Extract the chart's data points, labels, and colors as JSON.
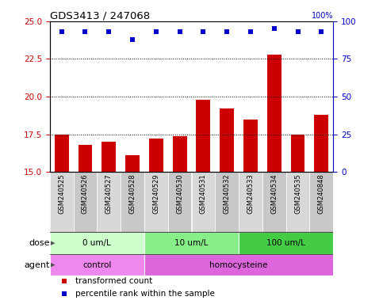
{
  "title": "GDS3413 / 247068",
  "samples": [
    "GSM240525",
    "GSM240526",
    "GSM240527",
    "GSM240528",
    "GSM240529",
    "GSM240530",
    "GSM240531",
    "GSM240532",
    "GSM240533",
    "GSM240534",
    "GSM240535",
    "GSM240848"
  ],
  "transformed_count": [
    17.5,
    16.8,
    17.0,
    16.1,
    17.2,
    17.4,
    19.8,
    19.2,
    18.5,
    22.8,
    17.5,
    18.8
  ],
  "percentile_rank_pct": [
    93,
    93,
    93,
    88,
    93,
    93,
    93,
    93,
    93,
    95,
    93,
    93
  ],
  "bar_color": "#cc0000",
  "dot_color": "#0000cc",
  "ylim_left": [
    15,
    25
  ],
  "ylim_right": [
    0,
    100
  ],
  "yticks_left": [
    15,
    17.5,
    20,
    22.5,
    25
  ],
  "yticks_right": [
    0,
    25,
    50,
    75,
    100
  ],
  "dotted_lines": [
    17.5,
    20,
    22.5
  ],
  "dose_groups": [
    {
      "label": "0 um/L",
      "start": 0,
      "end": 4,
      "color": "#ccffcc"
    },
    {
      "label": "10 um/L",
      "start": 4,
      "end": 8,
      "color": "#88ee88"
    },
    {
      "label": "100 um/L",
      "start": 8,
      "end": 12,
      "color": "#44cc44"
    }
  ],
  "agent_groups": [
    {
      "label": "control",
      "start": 0,
      "end": 4,
      "color": "#ee88ee"
    },
    {
      "label": "homocysteine",
      "start": 4,
      "end": 12,
      "color": "#dd66dd"
    }
  ],
  "legend_items": [
    {
      "label": "transformed count",
      "color": "#cc0000"
    },
    {
      "label": "percentile rank within the sample",
      "color": "#0000cc"
    }
  ],
  "dose_label": "dose",
  "agent_label": "agent",
  "bar_width": 0.6,
  "sample_bg_colors": [
    "#d8d8d8",
    "#c8c8c8"
  ],
  "plot_bgcolor": "#ffffff",
  "left_color": "#cc0000",
  "right_color": "#0000cc"
}
